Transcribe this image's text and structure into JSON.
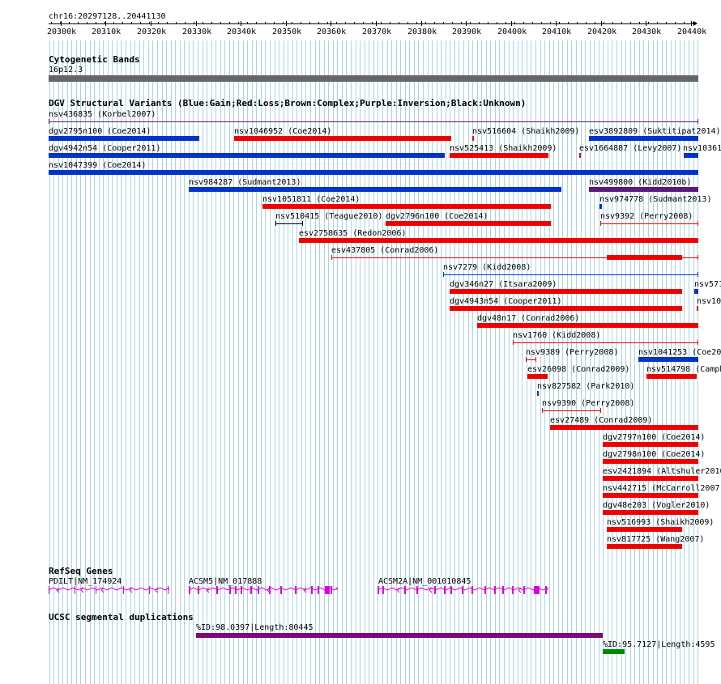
{
  "colors": {
    "gain": "#0033cc",
    "loss": "#ee0000",
    "complex": "#8b4513",
    "inversion": "#5a1a7a",
    "unknown": "#000000",
    "gene": "#dd00dd",
    "segdup_purple": "#7a0a7a",
    "segdup_green": "#008800",
    "band": "#666666",
    "grid": "#a8d4e6"
  },
  "ruler": {
    "position": "chr16:20297128..20441130",
    "ticks": [
      "20300k",
      "20310k",
      "20320k",
      "20330k",
      "20340k",
      "20350k",
      "20360k",
      "20370k",
      "20380k",
      "20390k",
      "20400k",
      "20410k",
      "20420k",
      "20430k",
      "20440k"
    ]
  },
  "cyto": {
    "title": "Cytogenetic Bands",
    "band_label": "16p12.3"
  },
  "dgv": {
    "title": "DGV Structural Variants (Blue:Gain;Red:Loss;Brown:Complex;Purple:Inversion;Black:Unknown)",
    "features": [
      {
        "label": "nsv436835 (Korbel2007)",
        "type": "inversion"
      },
      {
        "label": "dgv2795n100 (Coe2014)",
        "type": "gain"
      },
      {
        "label": "nsv1046952 (Coe2014)",
        "type": "loss"
      },
      {
        "label": "nsv516604 (Shaikh2009)",
        "type": "loss"
      },
      {
        "label": "esv3892809 (Suktitipat2014)",
        "type": "gain"
      },
      {
        "label": "dgv4942n54 (Cooper2011)",
        "type": "gain"
      },
      {
        "label": "nsv525413 (Shaikh2009)",
        "type": "loss"
      },
      {
        "label": "esv1664887 (Levy2007)",
        "type": "loss"
      },
      {
        "label": "nsv10361",
        "type": "gain"
      },
      {
        "label": "nsv1047399 (Coe2014)",
        "type": "gain"
      },
      {
        "label": "nsv984287 (Sudmant2013)",
        "type": "gain"
      },
      {
        "label": "nsv499800 (Kidd2010b)",
        "type": "inversion"
      },
      {
        "label": "nsv1051811 (Coe2014)",
        "type": "loss"
      },
      {
        "label": "nsv974778 (Sudmant2013)",
        "type": "gain"
      },
      {
        "label": "nsv510415 (Teague2010)",
        "type": "unknown"
      },
      {
        "label": "dgv2796n100 (Coe2014)",
        "type": "loss"
      },
      {
        "label": "nsv9392 (Perry2008)",
        "type": "loss"
      },
      {
        "label": "esv2758635 (Redon2006)",
        "type": "loss"
      },
      {
        "label": "esv437805 (Conrad2006)",
        "type": "loss"
      },
      {
        "label": "nsv7279 (Kidd2008)",
        "type": "gain"
      },
      {
        "label": "dgv346n27 (Itsara2009)",
        "type": "loss"
      },
      {
        "label": "nsv571",
        "type": "gain"
      },
      {
        "label": "dgv4943n54 (Cooper2011)",
        "type": "loss"
      },
      {
        "label": "nsv10",
        "type": "loss"
      },
      {
        "label": "dgv48n17 (Conrad2006)",
        "type": "loss"
      },
      {
        "label": "nsv1760 (Kidd2008)",
        "type": "loss"
      },
      {
        "label": "nsv9389 (Perry2008)",
        "type": "loss"
      },
      {
        "label": "nsv1041253 (Coe20",
        "type": "gain"
      },
      {
        "label": "esv26098 (Conrad2009)",
        "type": "loss"
      },
      {
        "label": "nsv514798 (Camph",
        "type": "loss"
      },
      {
        "label": "nsv827582 (Park2010)",
        "type": "gain"
      },
      {
        "label": "nsv9390 (Perry2008)",
        "type": "loss"
      },
      {
        "label": "esv27489 (Conrad2009)",
        "type": "loss"
      },
      {
        "label": "dgv2797n100 (Coe2014)",
        "type": "loss"
      },
      {
        "label": "dgv2798n100 (Coe2014)",
        "type": "loss"
      },
      {
        "label": "esv2421894 (Altshuler2010",
        "type": "loss"
      },
      {
        "label": "nsv442715 (McCarroll2007",
        "type": "loss"
      },
      {
        "label": "dgv48e203 (Vogler2010)",
        "type": "loss"
      },
      {
        "label": "nsv516993 (Shaikh2009)",
        "type": "loss"
      },
      {
        "label": "nsv817725 (Wang2007)",
        "type": "loss"
      }
    ]
  },
  "refseq": {
    "title": "RefSeq Genes",
    "genes": [
      {
        "label": "PDILT|NM_174924"
      },
      {
        "label": "ACSM5|NM_017888"
      },
      {
        "label": "ACSM2A|NM_001010845"
      }
    ]
  },
  "segdup": {
    "title": "UCSC segmental duplications",
    "items": [
      {
        "label": "%ID:98.0397|Length:80445",
        "color": "purple"
      },
      {
        "label": "%ID:95.7127|Length:4595",
        "color": "green"
      }
    ]
  }
}
